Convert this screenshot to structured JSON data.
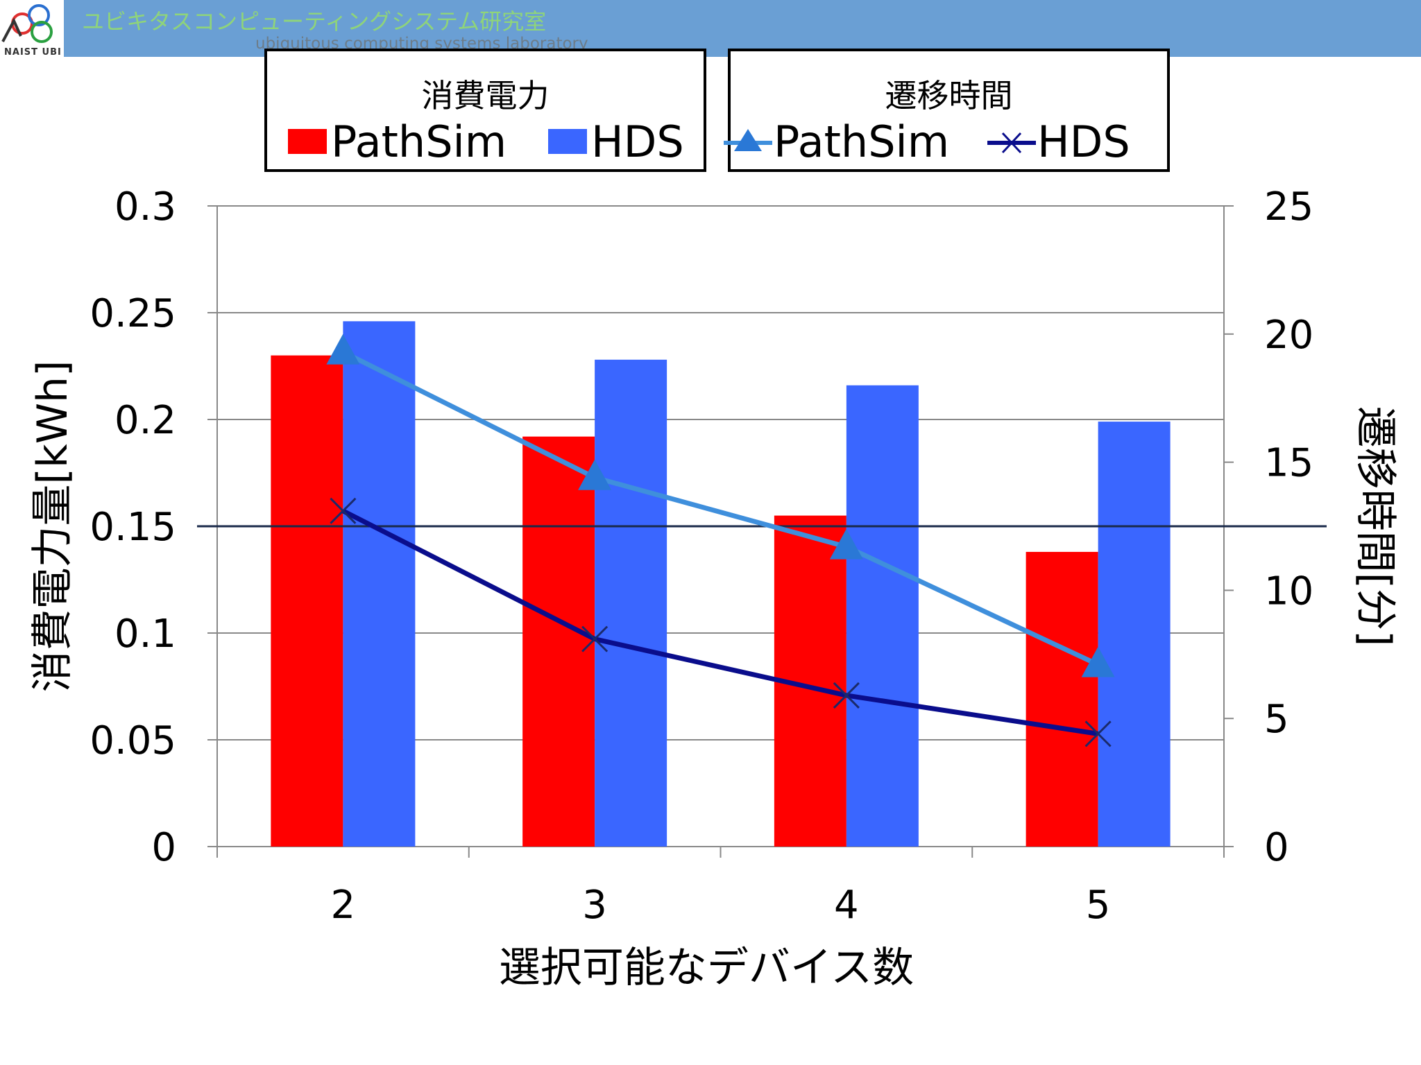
{
  "header": {
    "logo_text": "NAIST UBI",
    "lab_name_jp": "ユビキタスコンピューティングシステム研究室",
    "lab_name_en": "ubiquitous computing systems laboratory"
  },
  "legend_power": {
    "title": "消費電力",
    "items": [
      "PathSim",
      "HDS"
    ]
  },
  "legend_time": {
    "title": "遷移時間",
    "items": [
      "PathSim",
      "HDS"
    ]
  },
  "colors": {
    "pathsim_bar": "#ff0000",
    "hds_bar": "#3a66ff",
    "pathsim_line": "#3f8fdc",
    "hds_line": "#0a0d8c",
    "header": "#6a9fd4"
  },
  "chart_data": {
    "type": "bar",
    "categories": [
      "2",
      "3",
      "4",
      "5"
    ],
    "xlabel": "選択可能なデバイス数",
    "ylabel": "消費電力量[kWh]",
    "y2label": "遷移時間[分]",
    "ylim": [
      0,
      0.3
    ],
    "y2lim": [
      0,
      25
    ],
    "y_ticks": [
      "0",
      "0.05",
      "0.1",
      "0.15",
      "0.2",
      "0.25",
      "0.3"
    ],
    "y2_ticks": [
      "0",
      "5",
      "10",
      "15",
      "20",
      "25"
    ],
    "grid": true,
    "series": [
      {
        "name": "PathSim",
        "axis": "left",
        "type": "bar",
        "values": [
          0.23,
          0.192,
          0.155,
          0.138
        ]
      },
      {
        "name": "HDS",
        "axis": "left",
        "type": "bar",
        "values": [
          0.246,
          0.228,
          0.216,
          0.199
        ]
      },
      {
        "name": "PathSim",
        "axis": "right",
        "type": "line",
        "marker": "triangle",
        "values": [
          19.3,
          14.4,
          11.7,
          7.1
        ]
      },
      {
        "name": "HDS",
        "axis": "right",
        "type": "line",
        "marker": "x",
        "values": [
          13.1,
          8.1,
          5.9,
          4.4
        ]
      }
    ]
  }
}
